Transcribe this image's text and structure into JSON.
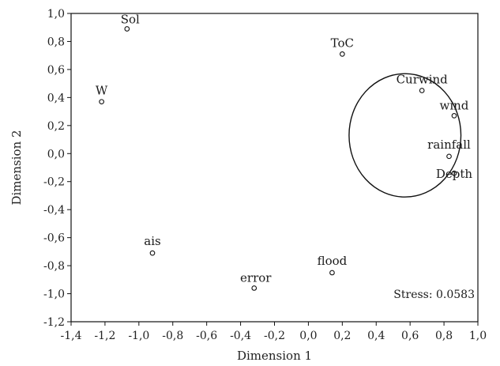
{
  "chart_data": {
    "type": "scatter",
    "title": "",
    "xlabel": "Dimension 1",
    "ylabel": "Dimension 2",
    "xlim": [
      -1.4,
      1.0
    ],
    "ylim": [
      -1.2,
      1.0
    ],
    "xticks": [
      -1.4,
      -1.2,
      -1.0,
      -0.8,
      -0.6,
      -0.4,
      -0.2,
      0.0,
      0.2,
      0.4,
      0.6,
      0.8,
      1.0
    ],
    "yticks": [
      -1.2,
      -1.0,
      -0.8,
      -0.6,
      -0.4,
      -0.2,
      0.0,
      0.2,
      0.4,
      0.6,
      0.8,
      1.0
    ],
    "xtick_labels": [
      "-1,4",
      "-1,2",
      "-1,0",
      "-0,8",
      "-0,6",
      "-0,4",
      "-0,2",
      "0,0",
      "0,2",
      "0,4",
      "0,6",
      "0,8",
      "1,0"
    ],
    "ytick_labels": [
      "-1,2",
      "-1,0",
      "-0,8",
      "-0,6",
      "-0,4",
      "-0,2",
      "0,0",
      "0,2",
      "0,4",
      "0,6",
      "0,8",
      "1,0"
    ],
    "grid": false,
    "marker": "circle-open",
    "points": [
      {
        "label": "Sol",
        "x": -1.07,
        "y": 0.89
      },
      {
        "label": "W",
        "x": -1.22,
        "y": 0.37
      },
      {
        "label": "ToC",
        "x": 0.2,
        "y": 0.71
      },
      {
        "label": "Curwind",
        "x": 0.67,
        "y": 0.45
      },
      {
        "label": "wind",
        "x": 0.86,
        "y": 0.27
      },
      {
        "label": "rainfall",
        "x": 0.83,
        "y": -0.02
      },
      {
        "label": "Depth",
        "x": 0.86,
        "y": -0.14
      },
      {
        "label": "ais",
        "x": -0.92,
        "y": -0.71
      },
      {
        "label": "error",
        "x": -0.32,
        "y": -0.96
      },
      {
        "label": "flood",
        "x": 0.14,
        "y": -0.85
      }
    ],
    "ellipse": {
      "cx": 0.57,
      "cy": 0.13,
      "rx": 0.33,
      "ry": 0.44
    },
    "annotation": "Stress: 0.0583",
    "annotation_position": "bottom-right"
  }
}
